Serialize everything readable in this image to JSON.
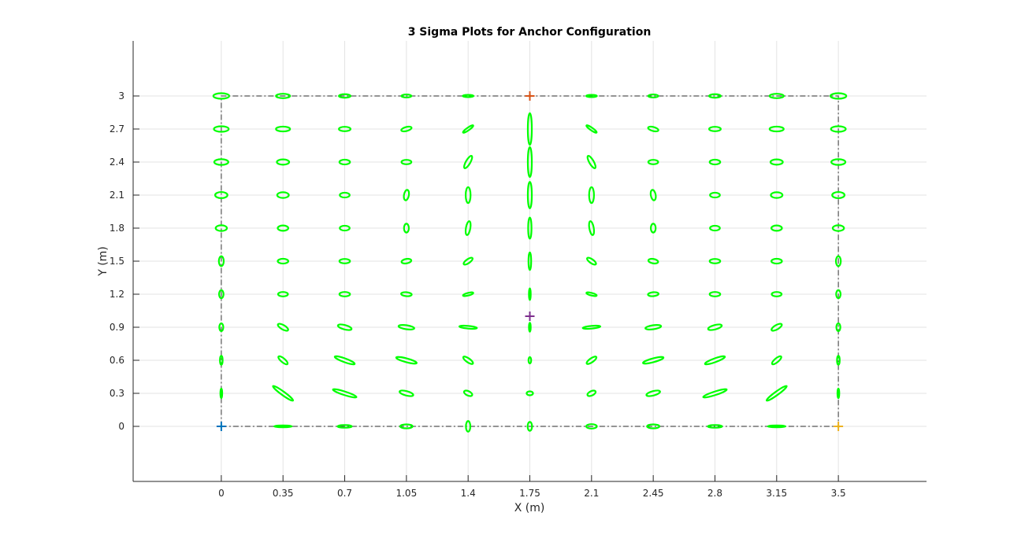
{
  "chart_data": {
    "type": "scatter",
    "title": "3 Sigma Plots for Anchor Configuration",
    "xlabel": "X (m)",
    "ylabel": "Y (m)",
    "xlim": [
      -0.5,
      4.0
    ],
    "ylim": [
      -0.5,
      3.5
    ],
    "xticks": [
      "0",
      "0.35",
      "0.7",
      "1.05",
      "1.4",
      "1.75",
      "2.1",
      "2.45",
      "2.8",
      "3.15",
      "3.5"
    ],
    "yticks": [
      "0",
      "0.3",
      "0.6",
      "0.9",
      "1.2",
      "1.5",
      "1.8",
      "2.1",
      "2.4",
      "2.7",
      "3"
    ],
    "grid": true,
    "colors": {
      "ellipse": "#00ff00",
      "boundary": "#555555",
      "grid": "#e3e3e3",
      "axis": "#262626"
    },
    "boundary": {
      "style": "dash-dot",
      "x": [
        0,
        3.5,
        3.5,
        0,
        0
      ],
      "y": [
        0,
        0,
        3,
        3,
        0
      ]
    },
    "anchors": [
      {
        "x": 0,
        "y": 0,
        "color": "#0072bd"
      },
      {
        "x": 1.75,
        "y": 3,
        "color": "#d95319"
      },
      {
        "x": 3.5,
        "y": 0,
        "color": "#edb120"
      },
      {
        "x": 1.75,
        "y": 1.0,
        "color": "#7e2f8e"
      }
    ],
    "ellipse_grid": {
      "x": [
        0,
        0.35,
        0.7,
        1.05,
        1.4,
        1.75,
        2.1,
        2.45,
        2.8,
        3.15,
        3.5
      ],
      "y": [
        0,
        0.3,
        0.6,
        0.9,
        1.2,
        1.5,
        1.8,
        2.1,
        2.4,
        2.7,
        3
      ]
    },
    "ellipses_note": "3-sigma ellipse semi-axes (a, b) in metres and orientation angle in degrees, listed row by row from y=0 upward, columns x=0..3.5",
    "ellipses": [
      [
        [
          0.001,
          0.001,
          0
        ],
        [
          0.05,
          0.008,
          0
        ],
        [
          0.04,
          0.012,
          0
        ],
        [
          0.035,
          0.018,
          0
        ],
        [
          0.03,
          0.02,
          90
        ],
        [
          0.025,
          0.02,
          90
        ],
        [
          0.03,
          0.02,
          0
        ],
        [
          0.035,
          0.018,
          0
        ],
        [
          0.04,
          0.012,
          0
        ],
        [
          0.05,
          0.008,
          0
        ],
        [
          0.001,
          0.001,
          0
        ]
      ],
      [
        [
          0.027,
          0.008,
          90
        ],
        [
          0.07,
          0.016,
          -36
        ],
        [
          0.07,
          0.016,
          -18
        ],
        [
          0.04,
          0.02,
          -15
        ],
        [
          0.025,
          0.02,
          -25
        ],
        [
          0.018,
          0.018,
          0
        ],
        [
          0.025,
          0.02,
          25
        ],
        [
          0.04,
          0.02,
          15
        ],
        [
          0.07,
          0.016,
          18
        ],
        [
          0.07,
          0.016,
          36
        ],
        [
          0.027,
          0.008,
          90
        ]
      ],
      [
        [
          0.025,
          0.012,
          90
        ],
        [
          0.033,
          0.018,
          -40
        ],
        [
          0.06,
          0.017,
          -20
        ],
        [
          0.06,
          0.017,
          -15
        ],
        [
          0.033,
          0.018,
          -35
        ],
        [
          0.018,
          0.012,
          90
        ],
        [
          0.033,
          0.018,
          35
        ],
        [
          0.06,
          0.017,
          15
        ],
        [
          0.06,
          0.017,
          20
        ],
        [
          0.033,
          0.018,
          40
        ],
        [
          0.025,
          0.012,
          90
        ]
      ],
      [
        [
          0.022,
          0.018,
          90
        ],
        [
          0.033,
          0.02,
          -30
        ],
        [
          0.04,
          0.02,
          -15
        ],
        [
          0.045,
          0.018,
          -8
        ],
        [
          0.05,
          0.012,
          -5
        ],
        [
          0.025,
          0.008,
          90
        ],
        [
          0.05,
          0.012,
          5
        ],
        [
          0.045,
          0.018,
          8
        ],
        [
          0.04,
          0.02,
          15
        ],
        [
          0.033,
          0.02,
          30
        ],
        [
          0.022,
          0.018,
          90
        ]
      ],
      [
        [
          0.023,
          0.02,
          90
        ],
        [
          0.028,
          0.02,
          0
        ],
        [
          0.03,
          0.02,
          0
        ],
        [
          0.03,
          0.018,
          -5
        ],
        [
          0.03,
          0.012,
          15
        ],
        [
          0.033,
          0.008,
          90
        ],
        [
          0.03,
          0.012,
          -15
        ],
        [
          0.03,
          0.018,
          5
        ],
        [
          0.03,
          0.02,
          0
        ],
        [
          0.028,
          0.02,
          0
        ],
        [
          0.023,
          0.02,
          90
        ]
      ],
      [
        [
          0.028,
          0.022,
          90
        ],
        [
          0.03,
          0.022,
          0
        ],
        [
          0.03,
          0.02,
          0
        ],
        [
          0.028,
          0.02,
          10
        ],
        [
          0.03,
          0.018,
          35
        ],
        [
          0.05,
          0.012,
          90
        ],
        [
          0.03,
          0.018,
          -35
        ],
        [
          0.028,
          0.02,
          -10
        ],
        [
          0.03,
          0.02,
          0
        ],
        [
          0.03,
          0.022,
          0
        ],
        [
          0.028,
          0.022,
          90
        ]
      ],
      [
        [
          0.032,
          0.026,
          0
        ],
        [
          0.03,
          0.024,
          0
        ],
        [
          0.028,
          0.022,
          0
        ],
        [
          0.025,
          0.022,
          90
        ],
        [
          0.04,
          0.02,
          80
        ],
        [
          0.06,
          0.015,
          90
        ],
        [
          0.04,
          0.02,
          -80
        ],
        [
          0.025,
          0.022,
          90
        ],
        [
          0.028,
          0.022,
          0
        ],
        [
          0.03,
          0.024,
          0
        ],
        [
          0.032,
          0.026,
          0
        ]
      ],
      [
        [
          0.035,
          0.028,
          0
        ],
        [
          0.033,
          0.026,
          0
        ],
        [
          0.028,
          0.022,
          0
        ],
        [
          0.03,
          0.022,
          80
        ],
        [
          0.045,
          0.022,
          90
        ],
        [
          0.075,
          0.018,
          90
        ],
        [
          0.045,
          0.022,
          90
        ],
        [
          0.03,
          0.022,
          100
        ],
        [
          0.028,
          0.022,
          0
        ],
        [
          0.033,
          0.026,
          0
        ],
        [
          0.035,
          0.028,
          0
        ]
      ],
      [
        [
          0.04,
          0.026,
          0
        ],
        [
          0.035,
          0.024,
          0
        ],
        [
          0.03,
          0.022,
          0
        ],
        [
          0.028,
          0.02,
          0
        ],
        [
          0.04,
          0.02,
          60
        ],
        [
          0.085,
          0.018,
          90
        ],
        [
          0.04,
          0.02,
          -60
        ],
        [
          0.028,
          0.02,
          0
        ],
        [
          0.03,
          0.022,
          0
        ],
        [
          0.035,
          0.024,
          0
        ],
        [
          0.04,
          0.026,
          0
        ]
      ],
      [
        [
          0.042,
          0.025,
          0
        ],
        [
          0.04,
          0.022,
          0
        ],
        [
          0.033,
          0.02,
          0
        ],
        [
          0.03,
          0.018,
          15
        ],
        [
          0.035,
          0.012,
          35
        ],
        [
          0.09,
          0.018,
          90
        ],
        [
          0.035,
          0.012,
          -35
        ],
        [
          0.03,
          0.018,
          -15
        ],
        [
          0.033,
          0.02,
          0
        ],
        [
          0.04,
          0.022,
          0
        ],
        [
          0.042,
          0.025,
          0
        ]
      ],
      [
        [
          0.045,
          0.025,
          0
        ],
        [
          0.04,
          0.02,
          0
        ],
        [
          0.033,
          0.016,
          0
        ],
        [
          0.028,
          0.014,
          0
        ],
        [
          0.03,
          0.01,
          0
        ],
        [
          0.001,
          0.001,
          0
        ],
        [
          0.03,
          0.01,
          0
        ],
        [
          0.028,
          0.014,
          0
        ],
        [
          0.033,
          0.016,
          0
        ],
        [
          0.04,
          0.02,
          0
        ],
        [
          0.045,
          0.025,
          0
        ]
      ]
    ]
  }
}
